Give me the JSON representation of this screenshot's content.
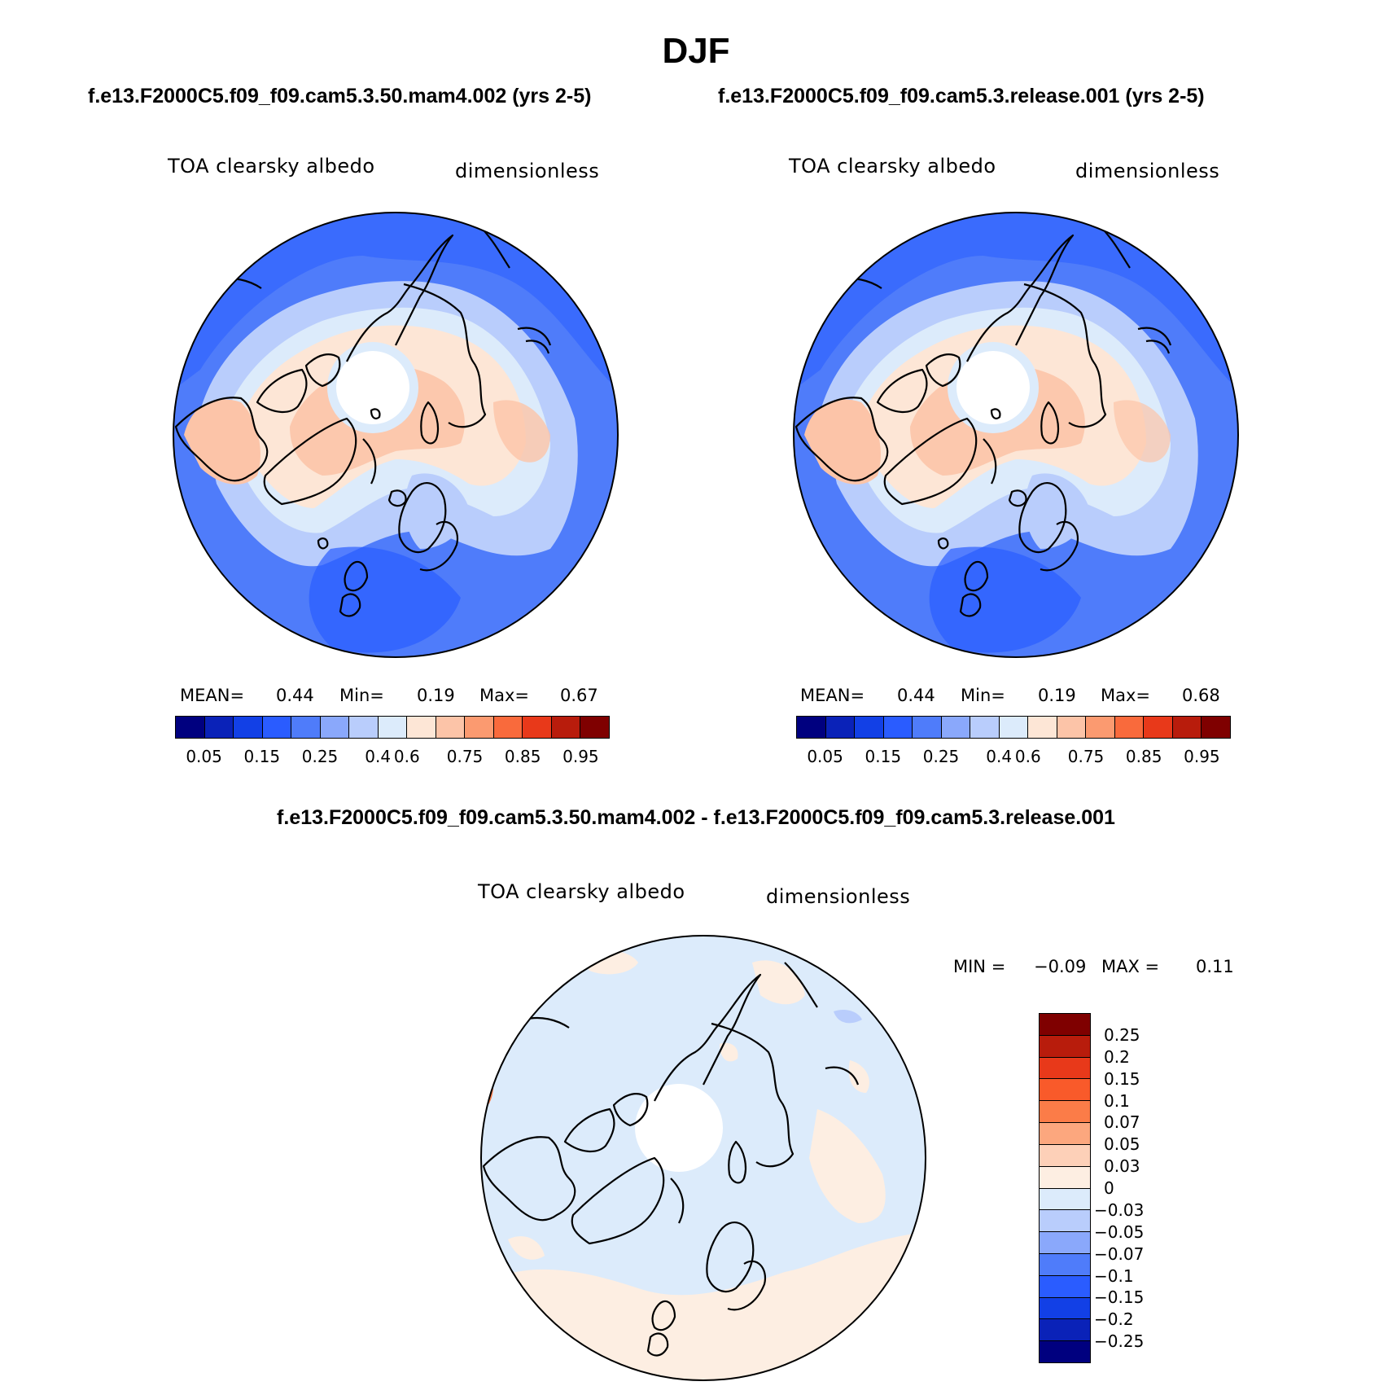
{
  "title": "DJF",
  "panels": [
    {
      "case_title": "f.e13.F2000C5.f09_f09.cam5.3.50.mam4.002 (yrs 2-5)",
      "variable": "TOA clearsky albedo",
      "units": "dimensionless",
      "mean_label": "MEAN=",
      "mean_value": "0.44",
      "min_label": "Min=",
      "min_value": "0.19",
      "max_label": "Max=",
      "max_value": "0.67"
    },
    {
      "case_title": "f.e13.F2000C5.f09_f09.cam5.3.release.001 (yrs 2-5)",
      "variable": "TOA clearsky albedo",
      "units": "dimensionless",
      "mean_label": "MEAN=",
      "mean_value": "0.44",
      "min_label": "Min=",
      "min_value": "0.19",
      "max_label": "Max=",
      "max_value": "0.68"
    }
  ],
  "colorbar": {
    "colors": [
      "#00007f",
      "#0a22b8",
      "#1240e6",
      "#2a5cff",
      "#4f7cfa",
      "#8aa8fb",
      "#b9cdfc",
      "#dcebfb",
      "#fde6d6",
      "#fcc4a8",
      "#fb9a70",
      "#f96a3c",
      "#e8391a",
      "#b81c0c",
      "#7f0000"
    ],
    "tick_labels": [
      "0.05",
      "0.15",
      "0.25",
      "0.4",
      "0.6",
      "0.75",
      "0.85",
      "0.95"
    ]
  },
  "difference": {
    "title": "f.e13.F2000C5.f09_f09.cam5.3.50.mam4.002 - f.e13.F2000C5.f09_f09.cam5.3.release.001",
    "variable": "TOA clearsky albedo",
    "units": "dimensionless",
    "min_label": "MIN =",
    "min_value": "−0.09",
    "max_label": "MAX =",
    "max_value": "0.11",
    "colorbar": {
      "colors_top_to_bottom": [
        "#7f0000",
        "#b81c0c",
        "#e8391a",
        "#f95a2a",
        "#fb7c48",
        "#fca77e",
        "#fdd0b8",
        "#fdeee2",
        "#dcebfb",
        "#b9cdfc",
        "#8aa8fb",
        "#4f7cfa",
        "#2a5cff",
        "#1240e6",
        "#0a22b8",
        "#00007f"
      ],
      "tick_labels": [
        "0.25",
        "0.2",
        "0.15",
        "0.1",
        "0.07",
        "0.05",
        "0.03",
        "0",
        "−0.03",
        "−0.05",
        "−0.07",
        "−0.1",
        "−0.15",
        "−0.2",
        "−0.25"
      ]
    }
  }
}
